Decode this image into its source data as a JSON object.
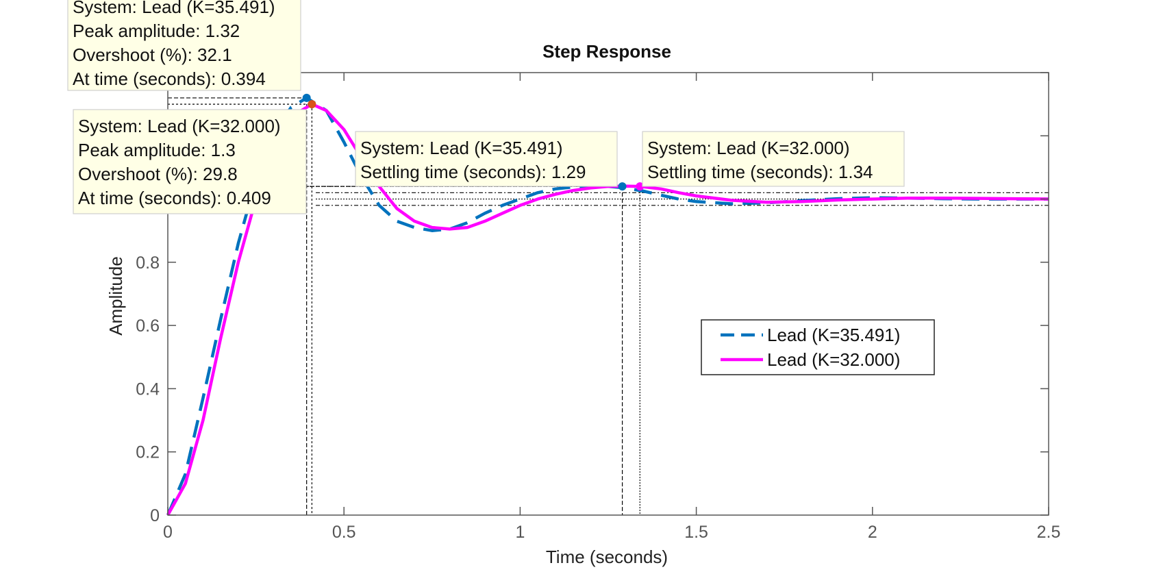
{
  "chart_data": {
    "type": "line",
    "title": "Step Response",
    "xlabel": "Time (seconds)",
    "ylabel": "Amplitude",
    "xlim": [
      0,
      2.5
    ],
    "ylim": [
      0,
      1.4
    ],
    "xticks": [
      0,
      0.5,
      1,
      1.5,
      2,
      2.5
    ],
    "xtick_labels": [
      "0",
      "0.5",
      "1",
      "1.5",
      "2",
      "2.5"
    ],
    "yticks": [
      0,
      0.2,
      0.4,
      0.6,
      0.8,
      1,
      1.2,
      1.4
    ],
    "ytick_labels": [
      "0",
      "0.2",
      "0.4",
      "0.6",
      "0.8",
      "",
      "",
      ""
    ],
    "grid": false,
    "legend_position": "right-middle",
    "colors": {
      "lead_35": "#0072BD",
      "lead_32": "#FF00FF",
      "tip_bg": "#FFFFE6",
      "marker_32": "#D95319"
    },
    "series": [
      {
        "name": "Lead (K=35.491)",
        "style": "dashed",
        "x": [
          0,
          0.05,
          0.1,
          0.15,
          0.2,
          0.25,
          0.3,
          0.35,
          0.394,
          0.45,
          0.5,
          0.55,
          0.6,
          0.65,
          0.7,
          0.75,
          0.8,
          0.85,
          0.9,
          0.95,
          1.0,
          1.05,
          1.1,
          1.15,
          1.2,
          1.25,
          1.29,
          1.35,
          1.4,
          1.45,
          1.5,
          1.6,
          1.7,
          1.8,
          1.9,
          2.0,
          2.1,
          2.2,
          2.3,
          2.4,
          2.5
        ],
        "y": [
          0,
          0.13,
          0.37,
          0.62,
          0.86,
          1.06,
          1.21,
          1.29,
          1.32,
          1.28,
          1.18,
          1.07,
          0.98,
          0.93,
          0.91,
          0.9,
          0.905,
          0.925,
          0.955,
          0.98,
          1.0,
          1.02,
          1.032,
          1.038,
          1.04,
          1.04,
          1.036,
          1.025,
          1.012,
          1.0,
          0.992,
          0.985,
          0.988,
          0.995,
          1.001,
          1.004,
          1.003,
          1.001,
          1.0,
          1.0,
          1.0
        ]
      },
      {
        "name": "Lead (K=32.000)",
        "style": "solid",
        "x": [
          0,
          0.05,
          0.1,
          0.15,
          0.2,
          0.25,
          0.3,
          0.35,
          0.409,
          0.45,
          0.5,
          0.55,
          0.6,
          0.65,
          0.7,
          0.75,
          0.8,
          0.85,
          0.9,
          0.95,
          1.0,
          1.05,
          1.1,
          1.15,
          1.2,
          1.25,
          1.3,
          1.34,
          1.4,
          1.45,
          1.5,
          1.6,
          1.7,
          1.8,
          1.9,
          2.0,
          2.1,
          2.2,
          2.3,
          2.4,
          2.5
        ],
        "y": [
          0,
          0.1,
          0.3,
          0.56,
          0.8,
          1.0,
          1.16,
          1.26,
          1.3,
          1.28,
          1.22,
          1.13,
          1.04,
          0.97,
          0.93,
          0.91,
          0.905,
          0.91,
          0.93,
          0.955,
          0.98,
          1.0,
          1.015,
          1.027,
          1.035,
          1.04,
          1.041,
          1.04,
          1.032,
          1.02,
          1.01,
          0.996,
          0.99,
          0.992,
          0.997,
          1.0,
          1.003,
          1.003,
          1.002,
          1.001,
          1.0
        ]
      }
    ],
    "annotations": [
      {
        "series": "Lead (K=35.491)",
        "kind": "peak",
        "at": [
          0.394,
          1.32
        ],
        "lines": [
          "System: Lead (K=35.491)",
          "Peak amplitude: 1.32",
          "Overshoot (%): 32.1",
          "At time (seconds): 0.394"
        ]
      },
      {
        "series": "Lead (K=32.000)",
        "kind": "peak",
        "at": [
          0.409,
          1.3
        ],
        "lines": [
          "System: Lead (K=32.000)",
          "Peak amplitude: 1.3",
          "Overshoot (%): 29.8",
          "At time (seconds): 0.409"
        ]
      },
      {
        "series": "Lead (K=35.491)",
        "kind": "settling",
        "at": [
          1.29,
          1.04
        ],
        "lines": [
          "System: Lead (K=35.491)",
          "Settling time (seconds): 1.29"
        ]
      },
      {
        "series": "Lead (K=32.000)",
        "kind": "settling",
        "at": [
          1.34,
          1.04
        ],
        "lines": [
          "System: Lead (K=32.000)",
          "Settling time (seconds): 1.34"
        ]
      }
    ]
  }
}
